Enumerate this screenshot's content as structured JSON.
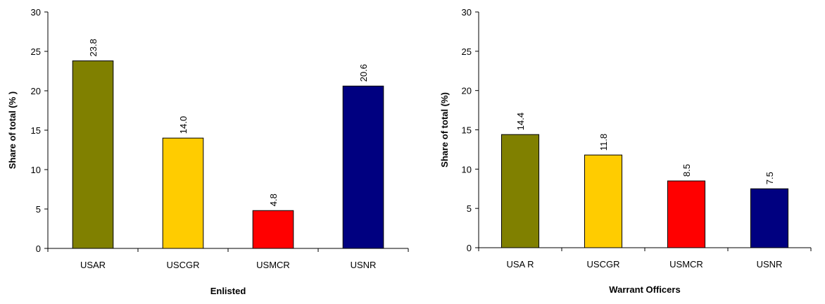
{
  "chart_data": [
    {
      "type": "bar",
      "title": "",
      "xlabel": "Enlisted",
      "ylabel": "Share of total (% )",
      "ylim": [
        0,
        30
      ],
      "yticks": [
        "0",
        "5",
        "10",
        "15",
        "20",
        "25",
        "30"
      ],
      "categories": [
        "USAR",
        "USCGR",
        "USMCR",
        "USNR"
      ],
      "values": [
        23.8,
        14.0,
        4.8,
        20.6
      ],
      "value_labels": [
        "23.8",
        "14.0",
        "4.8",
        "20.6"
      ],
      "colors": [
        "#808000",
        "#FFCC00",
        "#FF0000",
        "#000080"
      ],
      "grid": false,
      "legend": "none"
    },
    {
      "type": "bar",
      "title": "",
      "xlabel": "Warrant Officers",
      "ylabel": "Share of total (%)",
      "ylim": [
        0,
        30
      ],
      "yticks": [
        "0",
        "5",
        "10",
        "15",
        "20",
        "25",
        "30"
      ],
      "categories": [
        "USA R",
        "USCGR",
        "USMCR",
        "USNR"
      ],
      "values": [
        14.4,
        11.8,
        8.5,
        7.5
      ],
      "value_labels": [
        "14.4",
        "11.8",
        "8.5",
        "7.5"
      ],
      "colors": [
        "#808000",
        "#FFCC00",
        "#FF0000",
        "#000080"
      ],
      "grid": false,
      "legend": "none"
    }
  ]
}
